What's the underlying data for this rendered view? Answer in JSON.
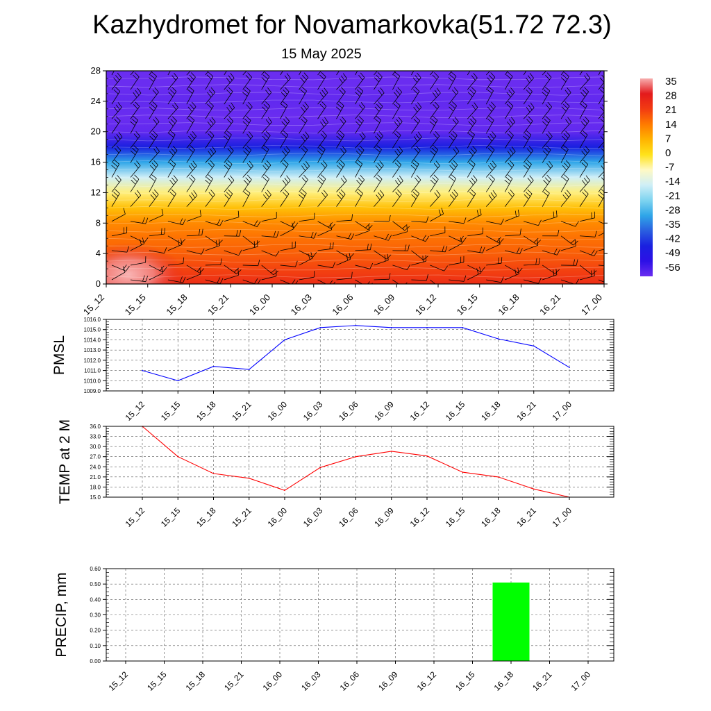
{
  "title": "Kazhydromet for Novamarkovka(51.72 72.3)",
  "subtitle": "15 May 2025",
  "time_labels": [
    "15_12",
    "15_15",
    "15_18",
    "15_21",
    "16_00",
    "16_03",
    "16_06",
    "16_09",
    "16_12",
    "16_15",
    "16_18",
    "16_21",
    "17_00"
  ],
  "chart_data": [
    {
      "type": "heatmap",
      "name": "temperature-cross-section",
      "x": [
        "15_12",
        "15_15",
        "15_18",
        "15_21",
        "16_00",
        "16_03",
        "16_06",
        "16_09",
        "16_12",
        "16_15",
        "16_18",
        "16_21",
        "17_00"
      ],
      "ylim": [
        0,
        28
      ],
      "yticks": [
        0,
        4,
        8,
        12,
        16,
        20,
        24,
        28
      ],
      "colorbar": {
        "ticks": [
          "35",
          "28",
          "21",
          "14",
          "7",
          "0",
          "-7",
          "-14",
          "-21",
          "-28",
          "-35",
          "-42",
          "-49",
          "-56"
        ],
        "stops": [
          "#f7aeae",
          "#e31a1c",
          "#f23b12",
          "#ff7a00",
          "#ffb300",
          "#ffe21a",
          "#fff9c4",
          "#cfeff7",
          "#7fd4f0",
          "#2fa6e8",
          "#2a5fe0",
          "#1a20e0",
          "#2d10e6",
          "#6a2df0"
        ]
      },
      "column_profile": {
        "levels": [
          0,
          2,
          4,
          6,
          8,
          10,
          12,
          14,
          16,
          18,
          20,
          22,
          24,
          26,
          28
        ],
        "values": [
          24,
          20,
          17,
          15,
          12,
          5,
          -4,
          -14,
          -28,
          -42,
          -55,
          -58,
          -55,
          -60,
          -62
        ]
      },
      "surface_warm_anomaly": {
        "x_range": [
          "15_12",
          "15_15"
        ],
        "level_range": [
          0,
          5
        ],
        "peak": 34
      },
      "wind_barbs": true
    },
    {
      "type": "line",
      "ylabel": "PMSL",
      "ylim": [
        1009.0,
        1016.0
      ],
      "yticks": [
        "1009.0",
        "1010.0",
        "1011.0",
        "1012.0",
        "1013.0",
        "1014.0",
        "1015.0",
        "1016.0"
      ],
      "x": [
        "15_12",
        "15_15",
        "15_18",
        "15_21",
        "16_00",
        "16_03",
        "16_06",
        "16_09",
        "16_12",
        "16_15",
        "16_18",
        "16_21",
        "17_00"
      ],
      "series": [
        {
          "values": [
            1011.0,
            1010.0,
            1011.4,
            1011.1,
            1014.0,
            1015.2,
            1015.4,
            1015.2,
            1015.2,
            1015.2,
            1014.1,
            1013.4,
            1011.3
          ],
          "color": "#0000ff"
        }
      ],
      "grid": true
    },
    {
      "type": "line",
      "ylabel": "TEMP at 2 M",
      "ylim": [
        15.0,
        36.0
      ],
      "yticks": [
        "15.0",
        "18.0",
        "21.0",
        "24.0",
        "27.0",
        "30.0",
        "33.0",
        "36.0"
      ],
      "x": [
        "15_12",
        "15_15",
        "15_18",
        "15_21",
        "16_00",
        "16_03",
        "16_06",
        "16_09",
        "16_12",
        "16_15",
        "16_18",
        "16_21",
        "17_00"
      ],
      "series": [
        {
          "values": [
            36.0,
            27.0,
            22.0,
            20.6,
            17.0,
            23.8,
            27.0,
            28.6,
            27.2,
            22.4,
            21.0,
            17.4,
            15.0
          ],
          "color": "#ff0000"
        }
      ],
      "grid": true
    },
    {
      "type": "bar",
      "ylabel": "PRECIP, mm",
      "ylim": [
        0.0,
        0.6
      ],
      "yticks": [
        "0.00",
        "0.10",
        "0.20",
        "0.30",
        "0.40",
        "0.50",
        "0.60"
      ],
      "categories": [
        "15_12",
        "15_15",
        "15_18",
        "15_21",
        "16_00",
        "16_03",
        "16_06",
        "16_09",
        "16_12",
        "16_15",
        "16_18",
        "16_21",
        "17_00"
      ],
      "values": [
        0,
        0,
        0,
        0,
        0,
        0,
        0,
        0,
        0,
        0,
        0.51,
        0,
        0
      ],
      "color": "#00ff00",
      "grid": true
    }
  ]
}
